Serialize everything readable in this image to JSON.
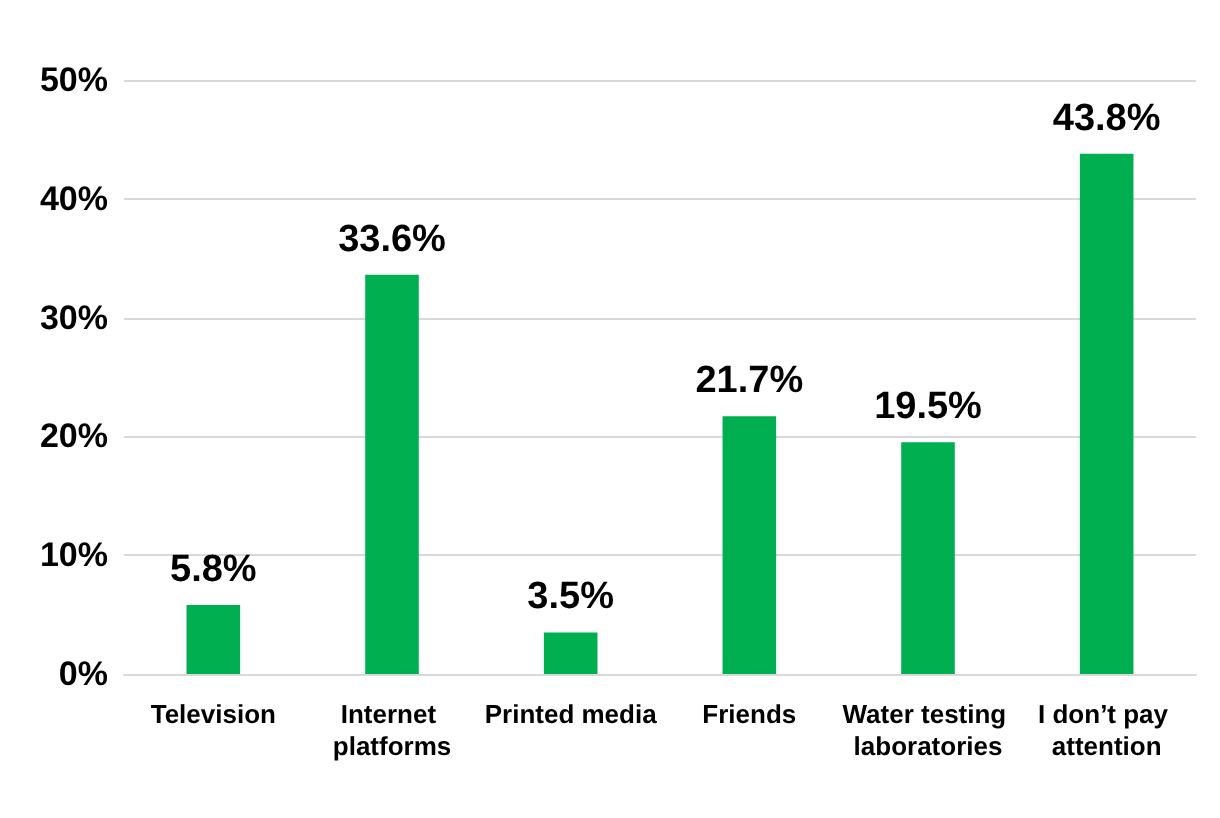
{
  "chart_data": {
    "type": "bar",
    "categories": [
      "Television",
      "Internet platforms",
      "Printed media",
      "Friends",
      "Water testing laboratories",
      "I don’t pay attention"
    ],
    "values": [
      5.8,
      33.6,
      3.5,
      21.7,
      19.5,
      43.8
    ],
    "value_labels": [
      "5.8%",
      "33.6%",
      "3.5%",
      "21.7%",
      "19.5%",
      "43.8%"
    ],
    "color": "#00b050",
    "ylim": [
      0,
      50
    ],
    "yticks": [
      {
        "value": 0,
        "label": "0%"
      },
      {
        "value": 10,
        "label": "10%"
      },
      {
        "value": 20,
        "label": "20%"
      },
      {
        "value": 30,
        "label": "30%"
      },
      {
        "value": 40,
        "label": "40%"
      },
      {
        "value": 50,
        "label": "50%"
      }
    ],
    "grid": "y"
  }
}
